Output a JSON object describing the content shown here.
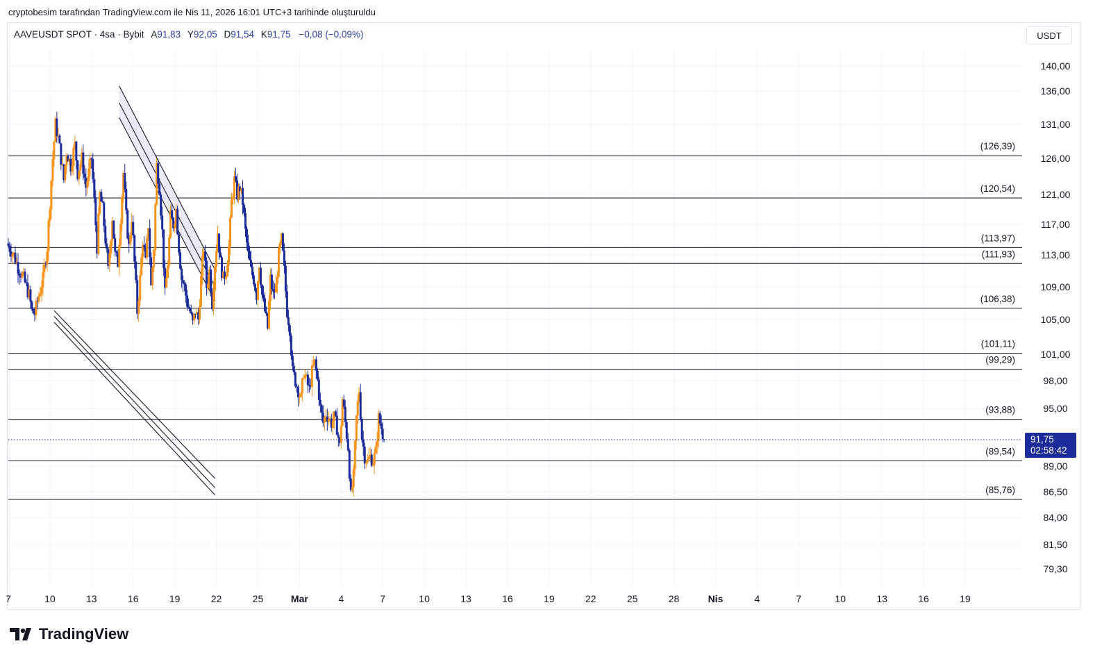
{
  "caption": "cryptobesim tarafından TradingView.com ile Nis 11, 2026 16:01 UTC+3 tarihinde oluşturuldu",
  "legend": {
    "symbol": "AAVEUSDT SPOT · 4sa · Bybit",
    "open_label": "A",
    "open": "91,83",
    "high_label": "Y",
    "high": "92,05",
    "low_label": "D",
    "low": "91,54",
    "close_label": "K",
    "close": "91,75",
    "change": "−0,08 (−0,09%)"
  },
  "currency": "USDT",
  "logo_text": "TradingView",
  "colors": {
    "up": "#f7931a",
    "down": "#1b2b99",
    "line": "#131722",
    "channel_fill": "#ebe8f7",
    "price_badge": "#1b2b99"
  },
  "chart_data": {
    "type": "candlestick",
    "symbol": "AAVEUSDT",
    "interval": "4sa",
    "y_axis_labels": [
      "140,00",
      "136,00",
      "131,00",
      "126,00",
      "121,00",
      "117,00",
      "113,00",
      "109,00",
      "105,00",
      "101,00",
      "98,00",
      "95,00",
      "89,00",
      "86,50",
      "84,00",
      "81,50",
      "79,30"
    ],
    "y_axis_values": [
      140,
      136,
      131,
      126,
      121,
      117,
      113,
      109,
      105,
      101,
      98,
      95,
      89,
      86.5,
      84,
      81.5,
      79.3
    ],
    "x_axis_labels": [
      "7",
      "10",
      "13",
      "16",
      "19",
      "22",
      "25",
      "Mar",
      "4",
      "7",
      "10",
      "13",
      "16",
      "19",
      "22",
      "25",
      "28",
      "Nis",
      "4",
      "7",
      "10",
      "13",
      "16",
      "19"
    ],
    "x_axis_bold": [
      "Mar",
      "Nis"
    ],
    "horizontal_levels": [
      {
        "value": 126.39,
        "label": "(126,39)"
      },
      {
        "value": 120.54,
        "label": "(120,54)"
      },
      {
        "value": 113.97,
        "label": "(113,97)"
      },
      {
        "value": 111.93,
        "label": "(111,93)"
      },
      {
        "value": 106.38,
        "label": "(106,38)"
      },
      {
        "value": 101.11,
        "label": "(101,11)"
      },
      {
        "value": 99.29,
        "label": "(99,29)"
      },
      {
        "value": 93.88,
        "label": "(93,88)"
      },
      {
        "value": 89.54,
        "label": "(89,54)"
      },
      {
        "value": 85.76,
        "label": "(85,76)"
      }
    ],
    "upper_channel": {
      "lines": [
        {
          "x0": 15.0,
          "y0": 136.8,
          "x1": 21.9,
          "y1": 111.2
        },
        {
          "x0": 15.0,
          "y0": 134.2,
          "x1": 21.9,
          "y1": 109.0
        },
        {
          "x0": 15.0,
          "y0": 132.0,
          "x1": 21.9,
          "y1": 107.3
        }
      ]
    },
    "lower_channel": {
      "lines": [
        {
          "x0": 10.3,
          "y0": 106.1,
          "x1": 21.9,
          "y1": 87.8
        },
        {
          "x0": 10.3,
          "y0": 105.4,
          "x1": 21.9,
          "y1": 86.9
        },
        {
          "x0": 10.3,
          "y0": 104.7,
          "x1": 21.9,
          "y1": 86.2
        }
      ]
    },
    "last_price": "91,75",
    "last_value": 91.75,
    "countdown": "02:58:42",
    "path": [
      [
        0.0,
        114.5
      ],
      [
        0.5,
        113
      ],
      [
        0.8,
        111.5
      ],
      [
        1.2,
        110
      ],
      [
        1.6,
        108
      ],
      [
        1.8,
        106
      ],
      [
        2.0,
        105.7
      ],
      [
        2.3,
        108
      ],
      [
        2.6,
        110
      ],
      [
        2.9,
        114
      ],
      [
        3.1,
        120
      ],
      [
        3.3,
        126
      ],
      [
        3.5,
        131
      ],
      [
        3.7,
        129
      ],
      [
        3.9,
        126
      ],
      [
        4.1,
        123
      ],
      [
        4.3,
        127
      ],
      [
        4.6,
        125
      ],
      [
        4.9,
        128
      ],
      [
        5.1,
        124
      ],
      [
        5.4,
        126
      ],
      [
        5.7,
        122
      ],
      [
        5.9,
        124
      ],
      [
        6.1,
        126
      ],
      [
        6.3,
        120
      ],
      [
        6.5,
        114
      ],
      [
        6.7,
        121
      ],
      [
        6.9,
        119
      ],
      [
        7.1,
        115
      ],
      [
        7.3,
        111
      ],
      [
        7.6,
        118
      ],
      [
        7.8,
        113
      ],
      [
        8.0,
        112
      ],
      [
        8.2,
        118
      ],
      [
        8.4,
        124
      ],
      [
        8.6,
        118
      ],
      [
        8.8,
        114
      ],
      [
        9.0,
        118
      ],
      [
        9.2,
        112
      ],
      [
        9.4,
        106
      ],
      [
        9.6,
        110
      ],
      [
        9.8,
        115
      ],
      [
        10.0,
        112
      ],
      [
        10.2,
        117
      ],
      [
        10.4,
        109
      ],
      [
        10.6,
        114
      ],
      [
        10.8,
        125
      ],
      [
        11.0,
        122
      ],
      [
        11.2,
        116
      ],
      [
        11.4,
        108
      ],
      [
        11.6,
        112
      ],
      [
        11.8,
        118
      ],
      [
        12.0,
        117
      ],
      [
        12.2,
        119
      ],
      [
        12.4,
        114
      ],
      [
        12.6,
        110
      ],
      [
        12.8,
        109
      ],
      [
        13.0,
        107
      ],
      [
        13.2,
        106
      ],
      [
        13.4,
        104.5
      ],
      [
        13.6,
        106
      ],
      [
        13.8,
        105
      ],
      [
        14.0,
        110
      ],
      [
        14.2,
        114
      ],
      [
        14.4,
        109
      ],
      [
        14.6,
        111
      ],
      [
        14.8,
        107
      ],
      [
        15.0,
        112
      ],
      [
        15.2,
        116
      ],
      [
        15.4,
        112
      ],
      [
        15.6,
        110
      ],
      [
        15.8,
        111
      ],
      [
        16.0,
        114
      ],
      [
        16.2,
        120
      ],
      [
        16.4,
        123
      ],
      [
        16.6,
        121
      ],
      [
        16.8,
        122
      ],
      [
        17.0,
        120
      ],
      [
        17.2,
        116
      ],
      [
        17.4,
        113
      ],
      [
        17.6,
        111
      ],
      [
        17.8,
        110
      ],
      [
        18.0,
        108
      ],
      [
        18.2,
        112
      ],
      [
        18.4,
        108
      ],
      [
        18.6,
        106
      ],
      [
        18.8,
        104
      ],
      [
        19.0,
        110
      ],
      [
        19.2,
        108
      ],
      [
        19.4,
        109
      ],
      [
        19.6,
        113
      ],
      [
        19.8,
        115
      ],
      [
        20.0,
        111
      ],
      [
        20.2,
        106
      ],
      [
        20.4,
        104
      ],
      [
        20.6,
        99
      ],
      [
        20.8,
        98
      ],
      [
        21.0,
        97
      ],
      [
        21.2,
        96
      ],
      [
        21.4,
        99
      ],
      [
        21.6,
        98
      ],
      [
        21.8,
        97
      ],
      [
        22.0,
        99
      ],
      [
        22.2,
        100
      ],
      [
        22.4,
        98
      ],
      [
        22.6,
        95
      ],
      [
        22.8,
        93.5
      ],
      [
        23.0,
        94.5
      ],
      [
        23.2,
        94
      ],
      [
        23.4,
        93.5
      ],
      [
        23.6,
        94
      ],
      [
        23.8,
        93
      ],
      [
        24.0,
        91
      ],
      [
        24.2,
        96
      ],
      [
        24.4,
        93.5
      ],
      [
        24.6,
        91
      ],
      [
        24.8,
        86
      ],
      [
        25.0,
        88
      ],
      [
        25.2,
        94
      ],
      [
        25.4,
        97
      ],
      [
        25.6,
        92
      ],
      [
        25.8,
        90
      ],
      [
        26.0,
        89.5
      ],
      [
        26.2,
        90
      ],
      [
        26.4,
        89.5
      ],
      [
        26.6,
        90.5
      ],
      [
        26.8,
        94
      ],
      [
        27.0,
        93
      ],
      [
        27.2,
        91.75
      ]
    ]
  }
}
